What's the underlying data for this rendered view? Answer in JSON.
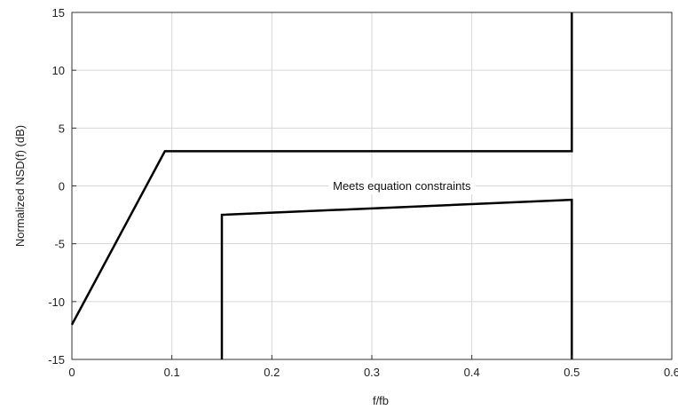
{
  "chart_data": {
    "type": "line",
    "title": "",
    "xlabel": "f/fb",
    "ylabel": "Normalized NSD(f) (dB)",
    "xlim": [
      0,
      0.6
    ],
    "ylim": [
      -15,
      15
    ],
    "xticks": [
      0,
      0.1,
      0.2,
      0.3,
      0.4,
      0.5,
      0.6
    ],
    "xtick_labels": [
      "0",
      "0.1",
      "0.2",
      "0.3",
      "0.4",
      "0.5",
      "0.6"
    ],
    "yticks": [
      -15,
      -10,
      -5,
      0,
      5,
      10,
      15
    ],
    "ytick_labels": [
      "-15",
      "-10",
      "-5",
      "0",
      "5",
      "10",
      "15"
    ],
    "grid": true,
    "legend": "none",
    "series": [
      {
        "color": "#000000",
        "points": [
          [
            0,
            -12
          ],
          [
            0.093,
            3
          ],
          [
            0.5,
            3
          ],
          [
            0.5,
            15
          ]
        ]
      },
      {
        "color": "#000000",
        "points": [
          [
            0.15,
            -15
          ],
          [
            0.15,
            -2.5
          ],
          [
            0.5,
            -1.2
          ],
          [
            0.5,
            -15
          ]
        ]
      }
    ],
    "annotations": [
      {
        "text": "Meets equation constraints",
        "x": 0.33,
        "y": 0
      }
    ]
  }
}
